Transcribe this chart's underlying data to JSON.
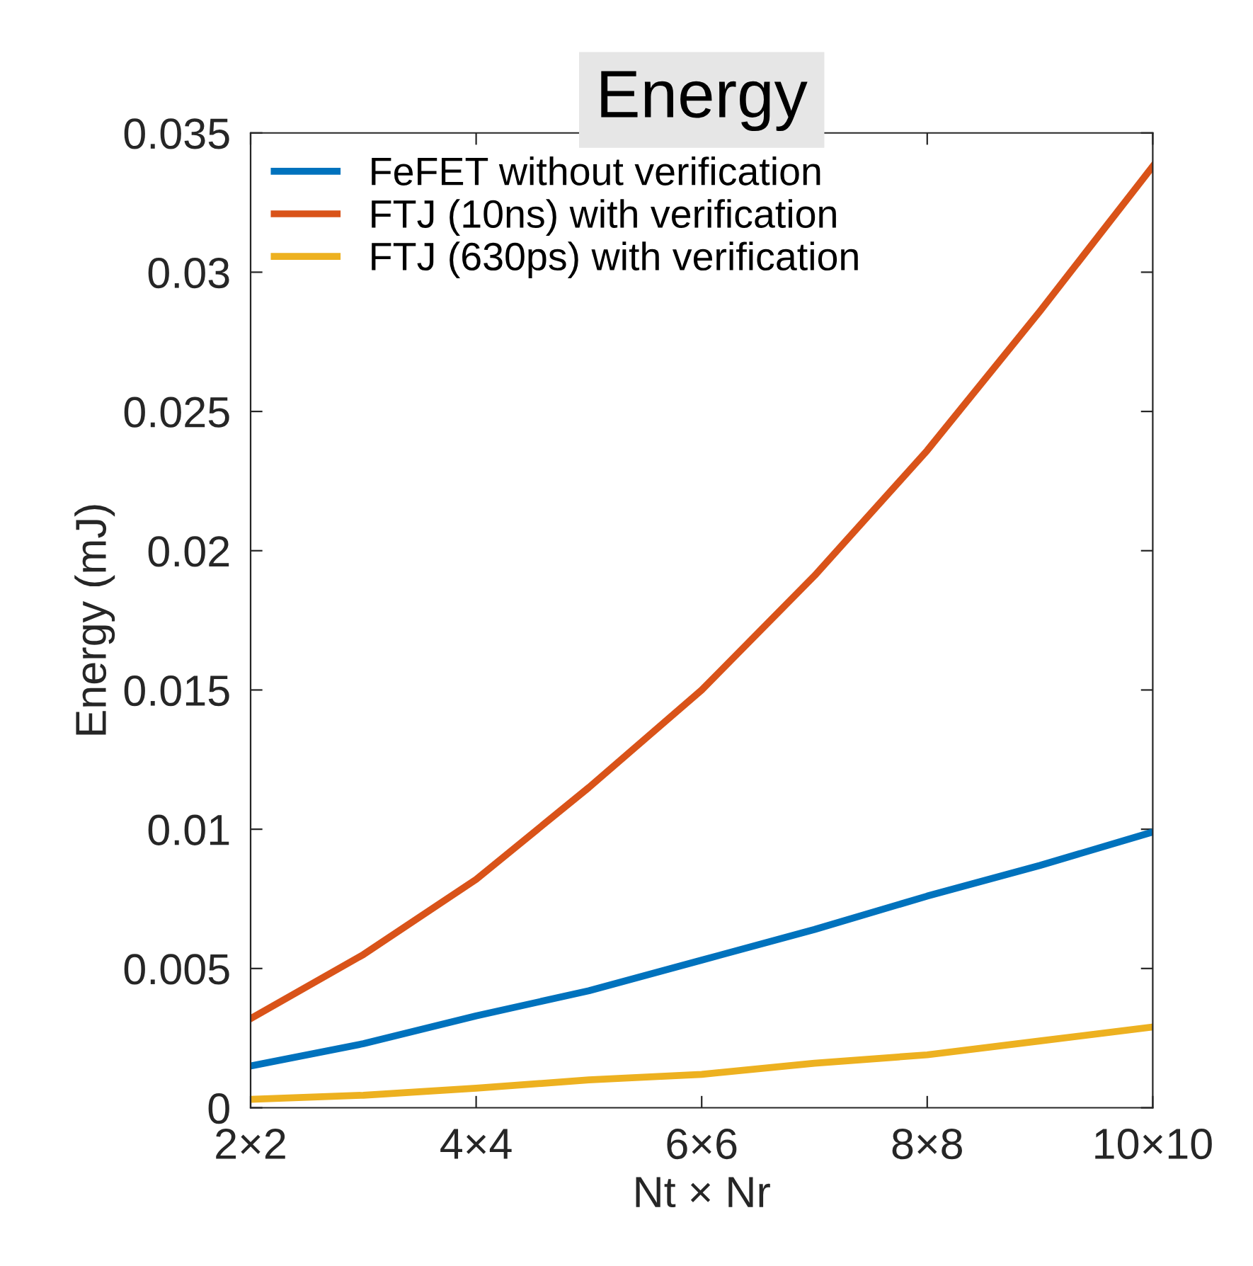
{
  "chart_data": {
    "type": "line",
    "title": "Energy",
    "xlabel": "Nt × Nr",
    "ylabel": "Energy (mJ)",
    "categories": [
      "2×2",
      null,
      "4×4",
      null,
      "6×6",
      null,
      "8×8",
      null,
      "10×10"
    ],
    "ylim": [
      0,
      0.035
    ],
    "yticks": [
      0,
      0.005,
      0.01,
      0.015,
      0.02,
      0.025,
      0.03,
      0.035
    ],
    "grid": false,
    "legend": "top left",
    "line_style": "solid",
    "marker": "none",
    "series": [
      {
        "name": "FeFET without verification",
        "color": "#0072bd",
        "values": [
          0.0015,
          0.0023,
          0.0033,
          0.0042,
          0.0053,
          0.0064,
          0.0076,
          0.0087,
          0.0099
        ]
      },
      {
        "name": "FTJ (10ns) with verification",
        "color": "#d95319",
        "values": [
          0.0032,
          0.0055,
          0.0082,
          0.0115,
          0.015,
          0.0191,
          0.0236,
          0.0286,
          0.0338
        ]
      },
      {
        "name": "FTJ (630ps) with verification",
        "color": "#edb120",
        "values": [
          0.0003,
          0.00045,
          0.0007,
          0.001,
          0.0012,
          0.0016,
          0.0019,
          0.0024,
          0.0029
        ]
      }
    ]
  }
}
